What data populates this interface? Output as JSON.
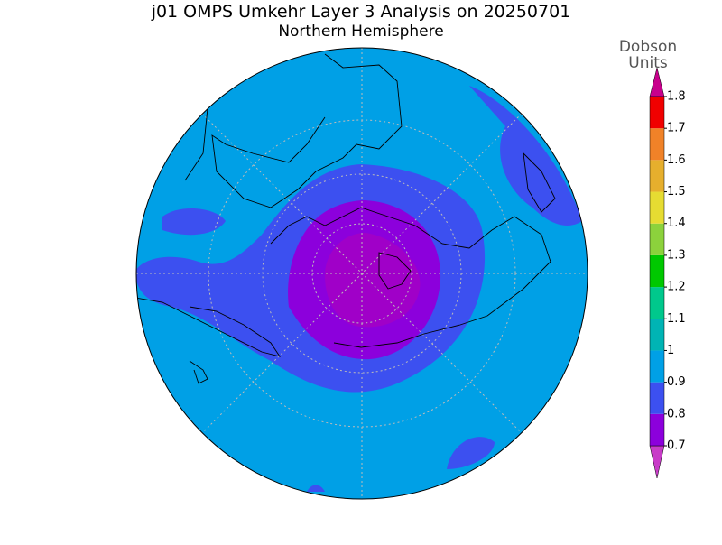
{
  "title": "j01 OMPS Umkehr Layer 3 Analysis on 20250701",
  "subtitle": "Northern Hemisphere",
  "colorbar": {
    "title": [
      "Dobson",
      "Units"
    ],
    "ticks": [
      0.7,
      0.8,
      0.9,
      1,
      1.1,
      1.2,
      1.3,
      1.4,
      1.5,
      1.6,
      1.7,
      1.8
    ],
    "colors": [
      "#c83cc8",
      "#8c00dc",
      "#3c50f0",
      "#00a0e6",
      "#00b4b4",
      "#00c88c",
      "#00c800",
      "#8cd23c",
      "#e6dc32",
      "#e6af2d",
      "#f08228",
      "#f00000",
      "#c8008c"
    ]
  }
}
